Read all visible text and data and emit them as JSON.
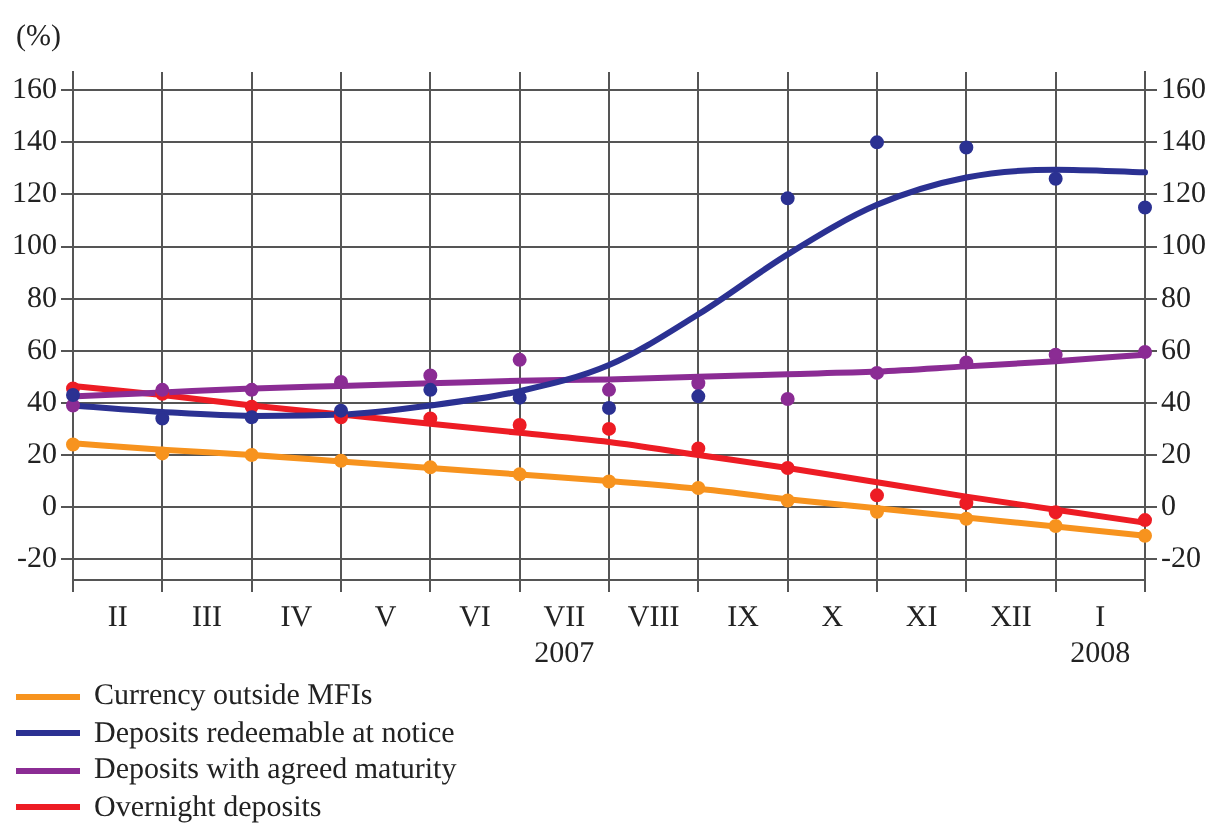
{
  "chart_data": {
    "type": "line",
    "ylabel": "(%)",
    "categories": [
      null,
      "II",
      null,
      "III",
      null,
      "IV",
      null,
      "V",
      null,
      "VI",
      null,
      "VII\n2007",
      null,
      "VIII",
      null,
      "IX",
      null,
      "X",
      null,
      "XI",
      null,
      "XII",
      null,
      "I\n2008",
      null
    ],
    "ylim": [
      -28,
      167
    ],
    "yticks": [
      -20,
      0,
      20,
      40,
      60,
      80,
      100,
      120,
      140,
      160
    ],
    "y2lim": [
      -28,
      167
    ],
    "y2ticks": [
      -20,
      0,
      20,
      40,
      60,
      80,
      100,
      120,
      140,
      160
    ],
    "grid": true,
    "legend": "bottom",
    "marker": "circle",
    "line_style": "solid",
    "series": [
      {
        "type": "scatter",
        "color": "#f7931e",
        "values": [
          24,
          null,
          20.6,
          null,
          20,
          null,
          17.8,
          null,
          15.3,
          null,
          12.6,
          null,
          9.8,
          null,
          7.3,
          null,
          2.5,
          null,
          -1.8,
          null,
          -4.5,
          null,
          -7.3,
          null,
          -11
        ]
      },
      {
        "type": "scatter",
        "color": "#2b3192",
        "values": [
          43,
          null,
          34,
          null,
          34.5,
          null,
          37,
          null,
          45,
          null,
          42,
          null,
          38,
          null,
          42.5,
          null,
          118.5,
          null,
          140,
          null,
          138,
          null,
          126,
          null,
          115
        ]
      },
      {
        "type": "scatter",
        "color": "#8b2c94",
        "values": [
          39,
          null,
          45,
          null,
          45,
          null,
          48,
          null,
          50.5,
          null,
          56.5,
          null,
          45,
          null,
          47.5,
          null,
          41.5,
          null,
          51.5,
          null,
          55.5,
          null,
          58.5,
          null,
          59.5
        ]
      },
      {
        "type": "scatter",
        "color": "#ed1c24",
        "values": [
          45.5,
          null,
          43.5,
          null,
          38.5,
          null,
          34.5,
          null,
          34,
          null,
          31.5,
          null,
          30,
          null,
          22.5,
          null,
          15,
          null,
          4.5,
          null,
          1.5,
          null,
          -2,
          null,
          -5
        ]
      },
      {
        "type": "line",
        "name": "Currency outside MFIs",
        "marker": "none",
        "color": "#f7931e",
        "values": [
          24.5,
          null,
          22,
          null,
          20,
          null,
          17.5,
          null,
          15,
          null,
          12.5,
          null,
          10,
          null,
          7,
          null,
          3,
          null,
          -0.5,
          null,
          -4,
          null,
          -7.5,
          null,
          -11
        ]
      },
      {
        "type": "line",
        "name": "Deposits redeemable at notice",
        "marker": "none",
        "color": "#2b3192",
        "values": [
          39,
          null,
          36.5,
          null,
          35,
          null,
          35.5,
          null,
          39,
          null,
          44.5,
          null,
          54.5,
          null,
          74,
          null,
          97,
          null,
          116,
          null,
          126.5,
          null,
          129.5,
          null,
          128.5
        ]
      },
      {
        "type": "line",
        "name": "Deposits with agreed maturity",
        "marker": "none",
        "color": "#8b2c94",
        "values": [
          42.5,
          null,
          44,
          null,
          45.5,
          null,
          46.5,
          null,
          47.5,
          null,
          48.5,
          null,
          49,
          null,
          50,
          null,
          51,
          null,
          52,
          null,
          54,
          null,
          56,
          null,
          58.5
        ]
      },
      {
        "type": "line",
        "name": "Overnight deposits",
        "marker": "none",
        "color": "#ed1c24",
        "values": [
          46.5,
          null,
          43,
          null,
          39,
          null,
          35.5,
          null,
          32,
          null,
          28.5,
          null,
          25,
          null,
          20,
          null,
          15,
          null,
          9.5,
          null,
          4,
          null,
          -1,
          null,
          -6
        ]
      }
    ]
  }
}
